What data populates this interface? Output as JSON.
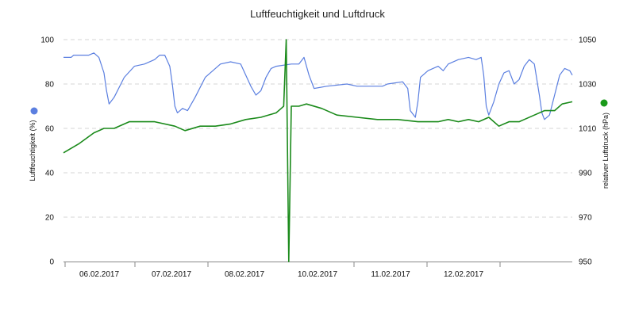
{
  "chart_data": {
    "type": "line",
    "title": "Luftfeuchtigkeit und Luftdruck",
    "x_axis": {
      "type": "date",
      "range": [
        "2017-02-05T12:00",
        "2017-02-13T21:00"
      ],
      "tick_labels": [
        "06.02.2017",
        "07.02.2017",
        "08.02.2017",
        "10.02.2017",
        "11.02.2017",
        "12.02.2017"
      ]
    },
    "y_left": {
      "label": "Luftfeuchtigkeit (%)",
      "range": [
        0,
        100
      ],
      "ticks": [
        0,
        20,
        40,
        60,
        80,
        100
      ]
    },
    "y_right": {
      "label": "relativer Luftdruck (hPa)",
      "range": [
        950,
        1050
      ],
      "ticks": [
        950,
        970,
        990,
        1010,
        1030,
        1050
      ]
    },
    "grid": "horizontal dashed",
    "series": [
      {
        "axis": "left",
        "color": "#5b7fe0",
        "marker_color": "#5b7fe0",
        "points": [
          [
            "2017-02-05T12:00",
            92
          ],
          [
            "2017-02-05T15:00",
            92
          ],
          [
            "2017-02-05T16:00",
            93
          ],
          [
            "2017-02-05T22:00",
            93
          ],
          [
            "2017-02-06T00:00",
            94
          ],
          [
            "2017-02-06T02:00",
            92
          ],
          [
            "2017-02-06T04:00",
            85
          ],
          [
            "2017-02-06T05:00",
            77
          ],
          [
            "2017-02-06T06:00",
            71
          ],
          [
            "2017-02-06T08:00",
            74
          ],
          [
            "2017-02-06T12:00",
            83
          ],
          [
            "2017-02-06T16:00",
            88
          ],
          [
            "2017-02-06T20:00",
            89
          ],
          [
            "2017-02-07T00:00",
            91
          ],
          [
            "2017-02-07T02:00",
            93
          ],
          [
            "2017-02-07T04:00",
            93
          ],
          [
            "2017-02-07T06:00",
            88
          ],
          [
            "2017-02-07T07:00",
            80
          ],
          [
            "2017-02-07T08:00",
            70
          ],
          [
            "2017-02-07T09:00",
            67
          ],
          [
            "2017-02-07T11:00",
            69
          ],
          [
            "2017-02-07T13:00",
            68
          ],
          [
            "2017-02-07T16:00",
            74
          ],
          [
            "2017-02-07T20:00",
            83
          ],
          [
            "2017-02-08T00:00",
            87
          ],
          [
            "2017-02-08T02:00",
            89
          ],
          [
            "2017-02-08T06:00",
            90
          ],
          [
            "2017-02-08T10:00",
            89
          ],
          [
            "2017-02-08T12:00",
            84
          ],
          [
            "2017-02-08T14:00",
            79
          ],
          [
            "2017-02-08T16:00",
            75
          ],
          [
            "2017-02-08T18:00",
            77
          ],
          [
            "2017-02-08T20:00",
            83
          ],
          [
            "2017-02-08T22:00",
            87
          ],
          [
            "2017-02-09T00:00",
            88
          ],
          [
            "2017-02-09T06:00",
            89
          ],
          [
            "2017-02-09T09:00",
            89
          ],
          [
            "2017-02-09T11:00",
            92
          ],
          [
            "2017-02-09T13:00",
            84
          ],
          [
            "2017-02-09T15:00",
            78
          ],
          [
            "2017-02-09T20:00",
            79
          ],
          [
            "2017-02-10T04:00",
            80
          ],
          [
            "2017-02-10T08:00",
            79
          ],
          [
            "2017-02-10T18:00",
            79
          ],
          [
            "2017-02-10T20:00",
            80
          ],
          [
            "2017-02-11T02:00",
            81
          ],
          [
            "2017-02-11T04:00",
            78
          ],
          [
            "2017-02-11T05:00",
            68
          ],
          [
            "2017-02-11T07:00",
            65
          ],
          [
            "2017-02-11T08:00",
            72
          ],
          [
            "2017-02-11T09:00",
            83
          ],
          [
            "2017-02-11T12:00",
            86
          ],
          [
            "2017-02-11T16:00",
            88
          ],
          [
            "2017-02-11T18:00",
            86
          ],
          [
            "2017-02-11T20:00",
            89
          ],
          [
            "2017-02-12T00:00",
            91
          ],
          [
            "2017-02-12T04:00",
            92
          ],
          [
            "2017-02-12T07:00",
            91
          ],
          [
            "2017-02-12T09:00",
            92
          ],
          [
            "2017-02-12T10:00",
            84
          ],
          [
            "2017-02-12T11:00",
            70
          ],
          [
            "2017-02-12T12:00",
            66
          ],
          [
            "2017-02-12T14:00",
            72
          ],
          [
            "2017-02-12T16:00",
            80
          ],
          [
            "2017-02-12T18:00",
            85
          ],
          [
            "2017-02-12T20:00",
            86
          ],
          [
            "2017-02-12T22:00",
            80
          ],
          [
            "2017-02-13T00:00",
            82
          ],
          [
            "2017-02-13T02:00",
            88
          ],
          [
            "2017-02-13T04:00",
            91
          ],
          [
            "2017-02-13T06:00",
            89
          ],
          [
            "2017-02-13T08:00",
            75
          ],
          [
            "2017-02-13T09:00",
            67
          ],
          [
            "2017-02-13T10:00",
            64
          ],
          [
            "2017-02-13T12:00",
            66
          ],
          [
            "2017-02-13T14:00",
            75
          ],
          [
            "2017-02-13T16:00",
            84
          ],
          [
            "2017-02-13T18:00",
            87
          ],
          [
            "2017-02-13T20:00",
            86
          ],
          [
            "2017-02-13T21:00",
            84
          ]
        ]
      },
      {
        "axis": "right",
        "color": "#1a8a1a",
        "marker_color": "#1a9a1a",
        "points": [
          [
            "2017-02-05T12:00",
            999
          ],
          [
            "2017-02-05T18:00",
            1003
          ],
          [
            "2017-02-06T00:00",
            1008
          ],
          [
            "2017-02-06T04:00",
            1010
          ],
          [
            "2017-02-06T08:00",
            1010
          ],
          [
            "2017-02-06T14:00",
            1013
          ],
          [
            "2017-02-07T00:00",
            1013
          ],
          [
            "2017-02-07T08:00",
            1011
          ],
          [
            "2017-02-07T12:00",
            1009
          ],
          [
            "2017-02-07T18:00",
            1011
          ],
          [
            "2017-02-08T00:00",
            1011
          ],
          [
            "2017-02-08T06:00",
            1012
          ],
          [
            "2017-02-08T12:00",
            1014
          ],
          [
            "2017-02-08T18:00",
            1015
          ],
          [
            "2017-02-09T00:00",
            1017
          ],
          [
            "2017-02-09T02:00",
            1019
          ],
          [
            "2017-02-09T03:00",
            1020
          ],
          [
            "2017-02-09T04:00",
            1050
          ],
          [
            "2017-02-09T05:00",
            950
          ],
          [
            "2017-02-09T06:00",
            1020
          ],
          [
            "2017-02-09T09:00",
            1020
          ],
          [
            "2017-02-09T12:00",
            1021
          ],
          [
            "2017-02-09T18:00",
            1019
          ],
          [
            "2017-02-10T00:00",
            1016
          ],
          [
            "2017-02-10T08:00",
            1015
          ],
          [
            "2017-02-10T16:00",
            1014
          ],
          [
            "2017-02-11T00:00",
            1014
          ],
          [
            "2017-02-11T08:00",
            1013
          ],
          [
            "2017-02-11T16:00",
            1013
          ],
          [
            "2017-02-11T20:00",
            1014
          ],
          [
            "2017-02-12T00:00",
            1013
          ],
          [
            "2017-02-12T04:00",
            1014
          ],
          [
            "2017-02-12T08:00",
            1013
          ],
          [
            "2017-02-12T12:00",
            1015
          ],
          [
            "2017-02-12T16:00",
            1011
          ],
          [
            "2017-02-12T20:00",
            1013
          ],
          [
            "2017-02-13T00:00",
            1013
          ],
          [
            "2017-02-13T02:00",
            1014
          ],
          [
            "2017-02-13T06:00",
            1016
          ],
          [
            "2017-02-13T10:00",
            1018
          ],
          [
            "2017-02-13T14:00",
            1018
          ],
          [
            "2017-02-13T17:00",
            1021
          ],
          [
            "2017-02-13T21:00",
            1022
          ]
        ]
      }
    ]
  }
}
